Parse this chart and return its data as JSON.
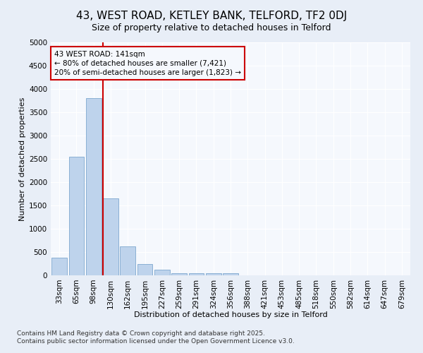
{
  "title1": "43, WEST ROAD, KETLEY BANK, TELFORD, TF2 0DJ",
  "title2": "Size of property relative to detached houses in Telford",
  "xlabel": "Distribution of detached houses by size in Telford",
  "ylabel": "Number of detached properties",
  "categories": [
    "33sqm",
    "65sqm",
    "98sqm",
    "130sqm",
    "162sqm",
    "195sqm",
    "227sqm",
    "259sqm",
    "291sqm",
    "324sqm",
    "356sqm",
    "388sqm",
    "421sqm",
    "453sqm",
    "485sqm",
    "518sqm",
    "550sqm",
    "582sqm",
    "614sqm",
    "647sqm",
    "679sqm"
  ],
  "values": [
    375,
    2550,
    3800,
    1650,
    625,
    250,
    125,
    50,
    50,
    50,
    50,
    0,
    0,
    0,
    0,
    0,
    0,
    0,
    0,
    0,
    0
  ],
  "bar_color": "#bed3ec",
  "bar_edge_color": "#8ab0d4",
  "vline_index": 3,
  "vline_color": "#cc0000",
  "box_text": "43 WEST ROAD: 141sqm\n← 80% of detached houses are smaller (7,421)\n20% of semi-detached houses are larger (1,823) →",
  "box_color": "#cc0000",
  "box_facecolor": "#f5f8fd",
  "ylim": [
    0,
    5000
  ],
  "yticks": [
    0,
    500,
    1000,
    1500,
    2000,
    2500,
    3000,
    3500,
    4000,
    4500,
    5000
  ],
  "figure_bg": "#e8eef7",
  "axes_bg": "#f5f8fd",
  "grid_color": "#ffffff",
  "footer1": "Contains HM Land Registry data © Crown copyright and database right 2025.",
  "footer2": "Contains public sector information licensed under the Open Government Licence v3.0.",
  "title1_fontsize": 11,
  "title2_fontsize": 9,
  "xlabel_fontsize": 8,
  "ylabel_fontsize": 8,
  "tick_fontsize": 7.5,
  "footer_fontsize": 6.5
}
